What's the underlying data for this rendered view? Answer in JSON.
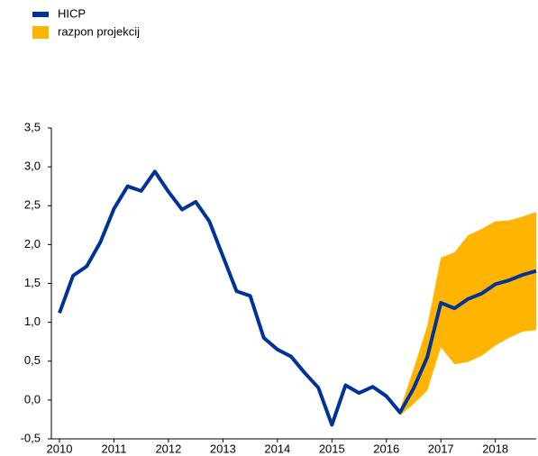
{
  "chart_data": {
    "type": "line",
    "x": [
      2010,
      2010.25,
      2010.5,
      2010.75,
      2011,
      2011.25,
      2011.5,
      2011.75,
      2012,
      2012.25,
      2012.5,
      2012.75,
      2013,
      2013.25,
      2013.5,
      2013.75,
      2014,
      2014.25,
      2014.5,
      2014.75,
      2015,
      2015.25,
      2015.5,
      2015.75,
      2016,
      2016.25,
      2016.5,
      2016.75,
      2017,
      2017.25,
      2017.5,
      2017.75,
      2018,
      2018.25,
      2018.5,
      2018.75
    ],
    "series": [
      {
        "name": "HICP",
        "color": "#003399",
        "values": [
          1.12,
          1.6,
          1.72,
          2.03,
          2.46,
          2.75,
          2.69,
          2.94,
          2.68,
          2.45,
          2.55,
          2.3,
          1.85,
          1.4,
          1.34,
          0.8,
          0.65,
          0.56,
          0.35,
          0.16,
          -0.32,
          0.19,
          0.09,
          0.17,
          0.05,
          -0.16,
          0.15,
          0.55,
          1.25,
          1.18,
          1.3,
          1.37,
          1.49,
          1.54,
          1.61,
          1.66
        ]
      },
      {
        "name": "razpon projekcij",
        "color": "#ffb400",
        "low": [
          null,
          null,
          null,
          null,
          null,
          null,
          null,
          null,
          null,
          null,
          null,
          null,
          null,
          null,
          null,
          null,
          null,
          null,
          null,
          null,
          null,
          null,
          null,
          null,
          null,
          -0.2,
          -0.05,
          0.12,
          0.68,
          0.46,
          0.49,
          0.57,
          0.7,
          0.8,
          0.88,
          0.9
        ],
        "high": [
          null,
          null,
          null,
          null,
          null,
          null,
          null,
          null,
          null,
          null,
          null,
          null,
          null,
          null,
          null,
          null,
          null,
          null,
          null,
          null,
          null,
          null,
          null,
          null,
          null,
          -0.12,
          0.4,
          0.95,
          1.83,
          1.9,
          2.12,
          2.2,
          2.3,
          2.31,
          2.36,
          2.42
        ]
      }
    ],
    "xlim": [
      2010,
      2018.75
    ],
    "xticks": [
      2010,
      2011,
      2012,
      2013,
      2014,
      2015,
      2016,
      2017,
      2018
    ],
    "ylim": [
      -0.5,
      3.5
    ],
    "yticks": [
      {
        "value": -0.5,
        "label": "-0,5"
      },
      {
        "value": 0,
        "label": "0,0"
      },
      {
        "value": 0.5,
        "label": "0,5"
      },
      {
        "value": 1,
        "label": "1,0"
      },
      {
        "value": 1.5,
        "label": "1,5"
      },
      {
        "value": 2,
        "label": "2,0"
      },
      {
        "value": 2.5,
        "label": "2,5"
      },
      {
        "value": 3,
        "label": "3,0"
      },
      {
        "value": 3.5,
        "label": "3,5"
      }
    ],
    "legend": "top-left"
  }
}
